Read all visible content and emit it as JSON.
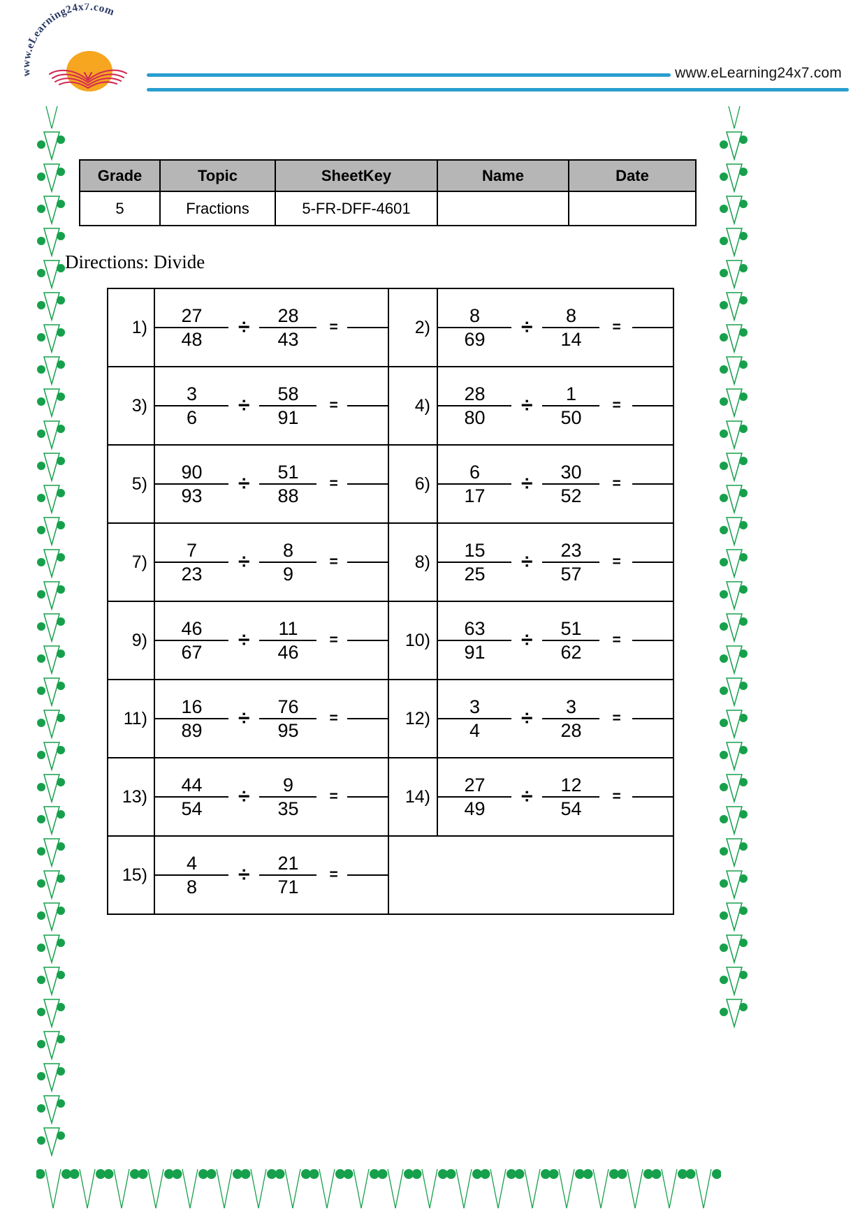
{
  "brand": {
    "site_url": "www.eLearning24x7.com",
    "logo_arc_text": "www.eLearning24x7.com"
  },
  "colors": {
    "accent_blue": "#299ED0",
    "decor_green": "#16A04B",
    "table_header_gray": "#B6B6B6",
    "sun_orange": "#F6A61F",
    "book_red": "#D12A52",
    "logo_navy": "#2A3A66"
  },
  "info_table": {
    "columns": [
      "Grade",
      "Topic",
      "SheetKey",
      "Name",
      "Date"
    ],
    "values": {
      "grade": "5",
      "topic": "Fractions",
      "sheetkey": "5-FR-DFF-4601",
      "name": "",
      "date": ""
    }
  },
  "directions_label": "Directions: Divide",
  "symbols": {
    "divide": "÷",
    "equals": "="
  },
  "problems": [
    {
      "label": "1)",
      "f1": {
        "n": "27",
        "d": "48"
      },
      "f2": {
        "n": "28",
        "d": "43"
      }
    },
    {
      "label": "2)",
      "f1": {
        "n": "8",
        "d": "69"
      },
      "f2": {
        "n": "8",
        "d": "14"
      }
    },
    {
      "label": "3)",
      "f1": {
        "n": "3",
        "d": "6"
      },
      "f2": {
        "n": "58",
        "d": "91"
      }
    },
    {
      "label": "4)",
      "f1": {
        "n": "28",
        "d": "80"
      },
      "f2": {
        "n": "1",
        "d": "50"
      }
    },
    {
      "label": "5)",
      "f1": {
        "n": "90",
        "d": "93"
      },
      "f2": {
        "n": "51",
        "d": "88"
      }
    },
    {
      "label": "6)",
      "f1": {
        "n": "6",
        "d": "17"
      },
      "f2": {
        "n": "30",
        "d": "52"
      }
    },
    {
      "label": "7)",
      "f1": {
        "n": "7",
        "d": "23"
      },
      "f2": {
        "n": "8",
        "d": "9"
      }
    },
    {
      "label": "8)",
      "f1": {
        "n": "15",
        "d": "25"
      },
      "f2": {
        "n": "23",
        "d": "57"
      }
    },
    {
      "label": "9)",
      "f1": {
        "n": "46",
        "d": "67"
      },
      "f2": {
        "n": "11",
        "d": "46"
      }
    },
    {
      "label": "10)",
      "f1": {
        "n": "63",
        "d": "91"
      },
      "f2": {
        "n": "51",
        "d": "62"
      }
    },
    {
      "label": "11)",
      "f1": {
        "n": "16",
        "d": "89"
      },
      "f2": {
        "n": "76",
        "d": "95"
      }
    },
    {
      "label": "12)",
      "f1": {
        "n": "3",
        "d": "4"
      },
      "f2": {
        "n": "3",
        "d": "28"
      }
    },
    {
      "label": "13)",
      "f1": {
        "n": "44",
        "d": "54"
      },
      "f2": {
        "n": "9",
        "d": "35"
      }
    },
    {
      "label": "14)",
      "f1": {
        "n": "27",
        "d": "49"
      },
      "f2": {
        "n": "12",
        "d": "54"
      }
    },
    {
      "label": "15)",
      "f1": {
        "n": "4",
        "d": "8"
      },
      "f2": {
        "n": "21",
        "d": "71"
      }
    }
  ]
}
